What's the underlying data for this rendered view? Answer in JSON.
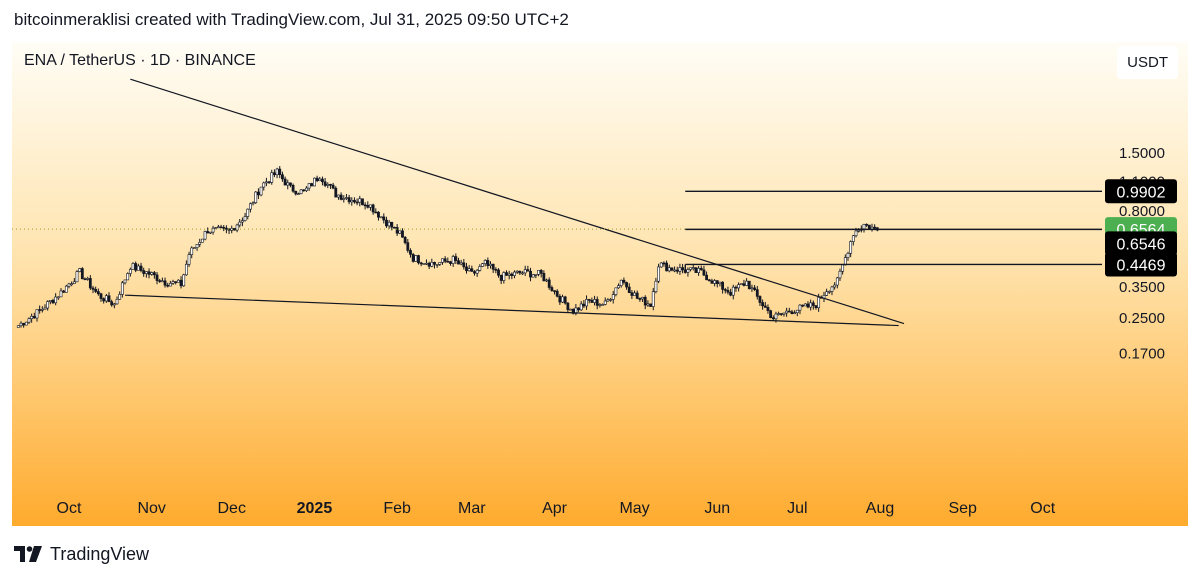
{
  "header": {
    "caption": "bitcoinmeraklisi created with TradingView.com, Jul 31, 2025 09:50 UTC+2"
  },
  "chart": {
    "symbol": "ENA / TetherUS · 1D · BINANCE",
    "currency_badge": "USDT"
  },
  "footer": {
    "brand": "TradingView"
  },
  "colors": {
    "candle": "#131722",
    "last_price_label_bg": "#4caf50",
    "level_label_bg": "#000000",
    "current_price_line": "#9aa32a"
  },
  "chart_data": {
    "type": "candlestick",
    "title": "ENA / TetherUS · 1D · BINANCE",
    "currency": "USDT",
    "y_scale": "log",
    "y_ticks": [
      "1.5000",
      "1.1000",
      "0.8000",
      "0.3500",
      "0.2500",
      "0.1700"
    ],
    "x_ticks": [
      {
        "date": "2024-10-01",
        "label": "Oct"
      },
      {
        "date": "2024-11-01",
        "label": "Nov"
      },
      {
        "date": "2024-12-01",
        "label": "Dec"
      },
      {
        "date": "2025-01-01",
        "label": "2025"
      },
      {
        "date": "2025-02-01",
        "label": "Feb"
      },
      {
        "date": "2025-03-01",
        "label": "Mar"
      },
      {
        "date": "2025-04-01",
        "label": "Apr"
      },
      {
        "date": "2025-05-01",
        "label": "May"
      },
      {
        "date": "2025-06-01",
        "label": "Jun"
      },
      {
        "date": "2025-07-01",
        "label": "Jul"
      },
      {
        "date": "2025-08-01",
        "label": "Aug"
      },
      {
        "date": "2025-09-01",
        "label": "Sep"
      },
      {
        "date": "2025-10-01",
        "label": "Oct"
      }
    ],
    "price_path": [
      [
        "2024-09-12",
        0.23
      ],
      [
        "2024-09-20",
        0.27
      ],
      [
        "2024-09-28",
        0.33
      ],
      [
        "2024-10-05",
        0.41
      ],
      [
        "2024-10-12",
        0.32
      ],
      [
        "2024-10-18",
        0.29
      ],
      [
        "2024-10-24",
        0.44
      ],
      [
        "2024-11-01",
        0.4
      ],
      [
        "2024-11-06",
        0.37
      ],
      [
        "2024-11-12",
        0.36
      ],
      [
        "2024-11-15",
        0.5
      ],
      [
        "2024-11-22",
        0.65
      ],
      [
        "2024-11-30",
        0.64
      ],
      [
        "2024-12-06",
        0.76
      ],
      [
        "2024-12-12",
        1.05
      ],
      [
        "2024-12-18",
        1.22
      ],
      [
        "2024-12-23",
        1.02
      ],
      [
        "2024-12-28",
        0.98
      ],
      [
        "2025-01-03",
        1.18
      ],
      [
        "2025-01-09",
        0.96
      ],
      [
        "2025-01-15",
        0.91
      ],
      [
        "2025-01-21",
        0.87
      ],
      [
        "2025-01-27",
        0.73
      ],
      [
        "2025-02-02",
        0.62
      ],
      [
        "2025-02-07",
        0.48
      ],
      [
        "2025-02-15",
        0.45
      ],
      [
        "2025-02-22",
        0.47
      ],
      [
        "2025-03-01",
        0.4
      ],
      [
        "2025-03-06",
        0.45
      ],
      [
        "2025-03-12",
        0.39
      ],
      [
        "2025-03-20",
        0.41
      ],
      [
        "2025-03-27",
        0.4
      ],
      [
        "2025-04-03",
        0.31
      ],
      [
        "2025-04-08",
        0.27
      ],
      [
        "2025-04-14",
        0.3
      ],
      [
        "2025-04-20",
        0.29
      ],
      [
        "2025-04-26",
        0.38
      ],
      [
        "2025-05-02",
        0.31
      ],
      [
        "2025-05-07",
        0.29
      ],
      [
        "2025-05-10",
        0.45
      ],
      [
        "2025-05-14",
        0.43
      ],
      [
        "2025-05-20",
        0.42
      ],
      [
        "2025-05-26",
        0.41
      ],
      [
        "2025-06-01",
        0.36
      ],
      [
        "2025-06-06",
        0.33
      ],
      [
        "2025-06-12",
        0.37
      ],
      [
        "2025-06-17",
        0.3
      ],
      [
        "2025-06-22",
        0.25
      ],
      [
        "2025-06-28",
        0.27
      ],
      [
        "2025-07-04",
        0.28
      ],
      [
        "2025-07-08",
        0.29
      ],
      [
        "2025-07-12",
        0.34
      ],
      [
        "2025-07-16",
        0.37
      ],
      [
        "2025-07-19",
        0.48
      ],
      [
        "2025-07-22",
        0.63
      ],
      [
        "2025-07-26",
        0.69
      ],
      [
        "2025-07-31",
        0.65
      ]
    ],
    "trendlines": [
      {
        "name": "descending resistance",
        "from": [
          "2024-10-24",
          3.35
        ],
        "to": [
          "2025-08-10",
          0.235
        ]
      },
      {
        "name": "rising support",
        "from": [
          "2024-10-22",
          0.32
        ],
        "to": [
          "2025-08-08",
          0.23
        ]
      }
    ],
    "horizontal_levels": [
      {
        "price": 0.9902,
        "label": "0.9902",
        "from": "2025-05-20"
      },
      {
        "price": 0.6546,
        "label": "0.6546",
        "from": "2025-05-20"
      },
      {
        "price": 0.4469,
        "label": "0.4469",
        "from": "2025-05-20"
      }
    ],
    "current_price": {
      "price": 0.6564,
      "label": "0.6564"
    },
    "obscured_label": "1.5000"
  }
}
